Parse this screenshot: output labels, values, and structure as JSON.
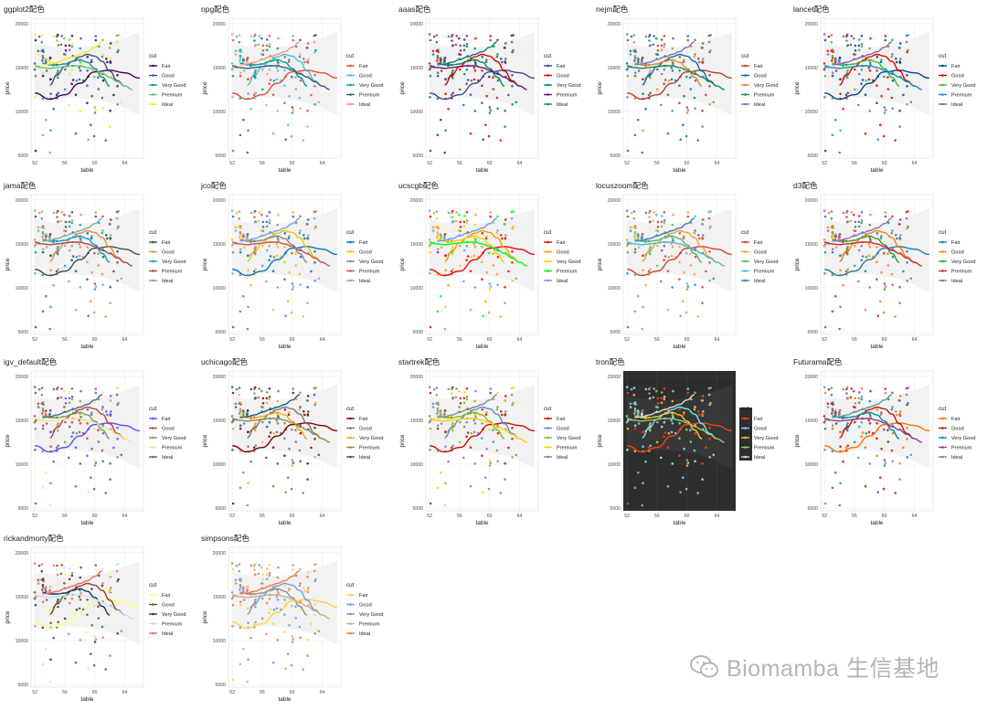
{
  "watermark": {
    "text": "Biomamba 生信基地",
    "icon": "wechat-icon"
  },
  "chart_data": {
    "type": "scatter",
    "xlabel": "table",
    "ylabel": "price",
    "legend_title": "cut",
    "legend_placement": "right",
    "xlim": [
      51.5,
      66.5
    ],
    "ylim": [
      4700,
      20600
    ],
    "x_ticks": [
      52,
      56,
      60,
      64
    ],
    "y_ticks": [
      5000,
      10000,
      15000,
      20000
    ],
    "y_tick_labels": [
      "5000",
      "10000",
      "15000",
      "20000"
    ],
    "grid": true,
    "categories": [
      "Fair",
      "Good",
      "Very Good",
      "Premium",
      "Ideal"
    ],
    "smooth_curves": {
      "Fair": {
        "x": [
          52,
          54,
          56,
          58,
          60,
          62,
          64,
          66
        ],
        "y": [
          12100,
          11400,
          11900,
          13200,
          14500,
          14700,
          14400,
          13800
        ]
      },
      "Good": {
        "x": [
          54,
          55,
          56,
          57,
          58,
          59,
          60,
          61,
          62,
          63,
          64
        ],
        "y": [
          13000,
          14200,
          15100,
          15700,
          16200,
          16500,
          16300,
          15700,
          14600,
          13500,
          12900
        ]
      },
      "Very Good": {
        "x": [
          53,
          54,
          55,
          56,
          57,
          58,
          59,
          60,
          61,
          62
        ],
        "y": [
          15500,
          15300,
          15300,
          15400,
          15700,
          15900,
          15600,
          14900,
          13900,
          12900
        ]
      },
      "Premium": {
        "x": [
          52,
          53,
          54,
          55,
          56,
          57,
          58,
          59,
          60,
          61,
          62,
          63,
          64,
          65
        ],
        "y": [
          15200,
          15000,
          14900,
          15000,
          15100,
          15200,
          15200,
          15000,
          14700,
          14300,
          13900,
          13400,
          12900,
          12500
        ]
      },
      "Ideal": {
        "x": [
          53,
          54,
          55,
          56,
          57,
          58,
          59,
          60,
          61
        ],
        "y": [
          15300,
          15400,
          15600,
          15900,
          16200,
          16500,
          16800,
          17300,
          17900
        ]
      }
    },
    "panels": [
      {
        "title": "ggplot2配色",
        "colors": [
          "#440154",
          "#3B528B",
          "#21908C",
          "#5DC863",
          "#FDE725"
        ]
      },
      {
        "title": "npg配色",
        "colors": [
          "#E64B35",
          "#4DBBD5",
          "#00A087",
          "#3C5488",
          "#F39B7F"
        ]
      },
      {
        "title": "aaas配色",
        "colors": [
          "#3B4992",
          "#EE0000",
          "#008B45",
          "#631879",
          "#008280"
        ]
      },
      {
        "title": "nejm配色",
        "colors": [
          "#BC3C29",
          "#0072B5",
          "#E18727",
          "#20854E",
          "#7876B1"
        ]
      },
      {
        "title": "lancet配色",
        "colors": [
          "#00468B",
          "#ED0000",
          "#42B540",
          "#0099B4",
          "#925E9F"
        ]
      },
      {
        "title": "jama配色",
        "colors": [
          "#374E55",
          "#DF8F44",
          "#00A1D5",
          "#B24745",
          "#79AF97"
        ]
      },
      {
        "title": "jco配色",
        "colors": [
          "#0073C2",
          "#EFC000",
          "#868686",
          "#CD534C",
          "#7AA6DC"
        ]
      },
      {
        "title": "ucscgb配色",
        "colors": [
          "#FF0000",
          "#FF9900",
          "#FFCC00",
          "#00FF00",
          "#6699FF"
        ]
      },
      {
        "title": "locuszoom配色",
        "colors": [
          "#D43F3A",
          "#EEA236",
          "#5CB85C",
          "#46B8DA",
          "#357EBD"
        ]
      },
      {
        "title": "d3配色",
        "colors": [
          "#1F77B4",
          "#FF7F0E",
          "#2CA02C",
          "#D62728",
          "#9467BD"
        ]
      },
      {
        "title": "igv_default配色",
        "colors": [
          "#5050FF",
          "#CE3D32",
          "#749B58",
          "#F0E685",
          "#466983"
        ]
      },
      {
        "title": "uchicago配色",
        "colors": [
          "#800000",
          "#767676",
          "#FFA319",
          "#8A9045",
          "#155F83"
        ]
      },
      {
        "title": "startrek配色",
        "colors": [
          "#CC0C00",
          "#5C88DA",
          "#84BD00",
          "#FFCD00",
          "#7C878E"
        ]
      },
      {
        "title": "tron配色",
        "colors": [
          "#FF410D",
          "#6EE2FF",
          "#F7C530",
          "#95CC5E",
          "#D0DFE6"
        ],
        "dark": true
      },
      {
        "title": "Futurama配色",
        "colors": [
          "#FF6F00",
          "#C71000",
          "#008EA0",
          "#8A4198",
          "#5A9599"
        ]
      },
      {
        "title": "rickandmorty配色",
        "colors": [
          "#FAFD7C",
          "#82491E",
          "#24325F",
          "#B7E4F9",
          "#FB6467"
        ]
      },
      {
        "title": "simpsons配色",
        "colors": [
          "#FED439",
          "#709AE1",
          "#8A9197",
          "#D2AF81",
          "#FD7446"
        ]
      }
    ]
  }
}
